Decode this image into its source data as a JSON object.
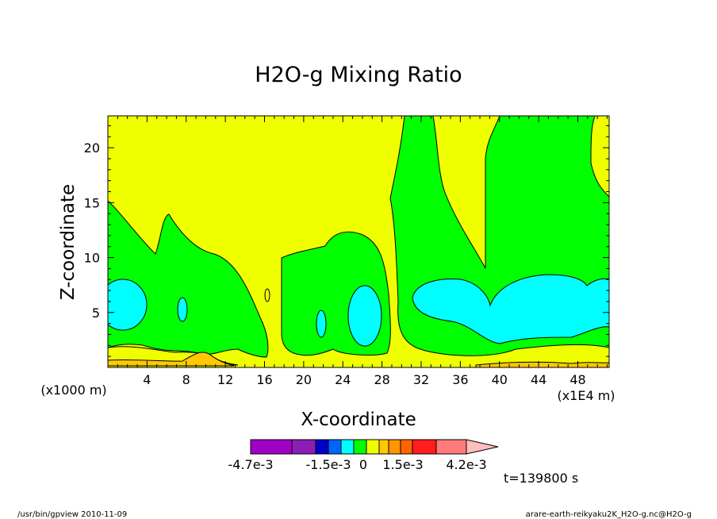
{
  "chart_data": {
    "type": "contour",
    "title": "H2O-g Mixing Ratio",
    "xlabel": "X-coordinate",
    "ylabel": "Z-coordinate",
    "x_unit_left": "(x1000 m)",
    "x_unit_right": "(x1E4 m)",
    "x_ticks": [
      "4",
      "8",
      "12",
      "16",
      "20",
      "24",
      "28",
      "32",
      "36",
      "40",
      "44",
      "48"
    ],
    "y_ticks": [
      "5",
      "10",
      "15",
      "20"
    ],
    "xlim": [
      0,
      51.2
    ],
    "ylim": [
      0,
      22.9
    ],
    "time_label": "t=139800 s",
    "footer_left": "/usr/bin/gpview   2010-11-09",
    "footer_right": "arare-earth-reikyaku2K_H2O-g.nc@H2O-g",
    "colorbar": {
      "colors": [
        "#A000C8",
        "#8C1EB4",
        "#0000C8",
        "#0064FF",
        "#00FFFF",
        "#00FF00",
        "#F0FF00",
        "#FFC800",
        "#FF9600",
        "#FF6400",
        "#FF1E1E",
        "#FF7A7A",
        "#FFBEBE"
      ],
      "labels": [
        "-4.7e-3",
        "-1.5e-3",
        "0",
        "1.5e-3",
        "4.2e-3"
      ]
    },
    "regions": [
      {
        "level": "background",
        "color": "#F0FF00"
      },
      {
        "level": "0 to 1.5e-3 (green)",
        "color": "#00FF00"
      },
      {
        "level": "-1.5e-3 to 0 (cyan)",
        "color": "#00FFFF"
      },
      {
        "level": "1.5e-3 to 2.9e-3 (orange)",
        "color": "#FFC800"
      }
    ]
  }
}
